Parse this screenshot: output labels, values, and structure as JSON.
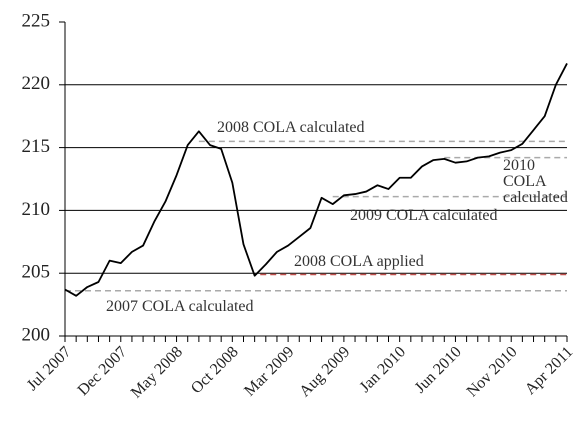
{
  "chart_data": {
    "type": "line",
    "categories": [
      "Jul 2007",
      null,
      null,
      null,
      null,
      "Dec 2007",
      null,
      null,
      null,
      null,
      "May 2008",
      null,
      null,
      null,
      null,
      "Oct 2008",
      null,
      null,
      null,
      null,
      "Mar 2009",
      null,
      null,
      null,
      null,
      "Aug 2009",
      null,
      null,
      null,
      null,
      "Jan 2010",
      null,
      null,
      null,
      null,
      "Jun 2010",
      null,
      null,
      null,
      null,
      "Nov 2010",
      null,
      null,
      null,
      null,
      "Apr 2011"
    ],
    "series": [
      {
        "color": "#000000",
        "values": [
          203.7,
          203.2,
          203.9,
          204.3,
          206.0,
          205.8,
          206.7,
          207.2,
          209.1,
          210.7,
          212.8,
          215.2,
          216.3,
          215.2,
          214.9,
          212.2,
          207.3,
          204.8,
          205.7,
          206.7,
          207.2,
          207.9,
          208.6,
          211.0,
          210.5,
          211.2,
          211.3,
          211.5,
          212.0,
          211.7,
          212.6,
          212.6,
          213.5,
          214.0,
          214.1,
          213.8,
          213.9,
          214.2,
          214.3,
          214.6,
          214.8,
          215.3,
          216.4,
          217.5,
          220.0,
          221.7
        ]
      }
    ],
    "ylim": [
      200,
      225
    ],
    "yticks": [
      200,
      205,
      210,
      215,
      220,
      225
    ],
    "grid": true,
    "reference_lines": [
      {
        "text": "2008 COLA calculated",
        "value": 215.5,
        "color": "#aaaaaa"
      },
      {
        "text": "2010 COLA calculated",
        "value": 214.2,
        "color": "#aaaaaa"
      },
      {
        "text": "2009 COLA calculated",
        "value": 211.1,
        "color": "#aaaaaa"
      },
      {
        "text": "2008 COLA applied",
        "value": 204.9,
        "color": "#c0504d"
      },
      {
        "text": "2007 COLA calculated",
        "value": 203.6,
        "color": "#aaaaaa"
      }
    ]
  }
}
